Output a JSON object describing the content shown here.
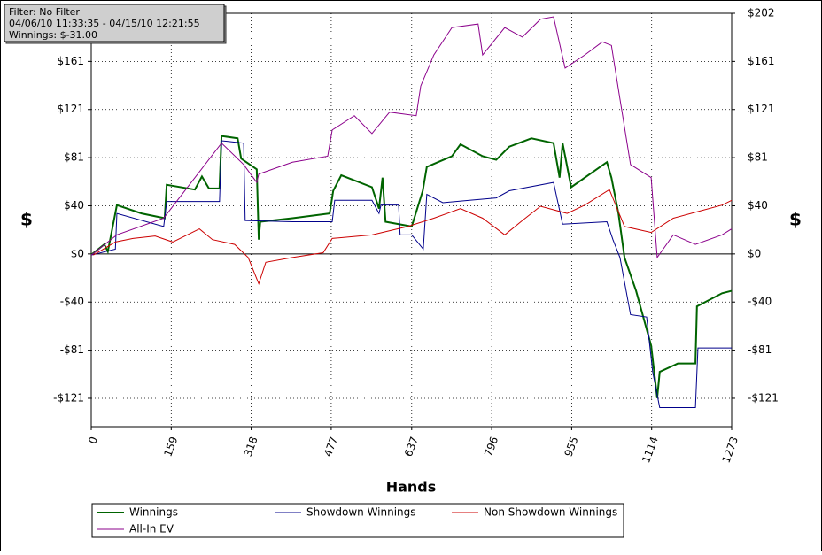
{
  "chart_data": {
    "type": "line",
    "info_box": [
      "Filter: No Filter",
      "04/06/10 11:33:35 - 04/15/10 12:21:55",
      "Winnings: $-31.00"
    ],
    "xlabel": "Hands",
    "ylabel": "$",
    "xlim": [
      0,
      1273
    ],
    "xticks": [
      0,
      159,
      318,
      477,
      637,
      796,
      955,
      1114,
      1273
    ],
    "ylim": [
      -145,
      202
    ],
    "yticks": [
      {
        "value": -121.2,
        "label": "-$121"
      },
      {
        "value": -80.8,
        "label": "-$81"
      },
      {
        "value": -40.4,
        "label": "-$40"
      },
      {
        "value": 0,
        "label": "$0"
      },
      {
        "value": 40.4,
        "label": "$40"
      },
      {
        "value": 80.8,
        "label": "$81"
      },
      {
        "value": 121.2,
        "label": "$121"
      },
      {
        "value": 161.6,
        "label": "$161"
      },
      {
        "value": 202,
        "label": "$202"
      }
    ],
    "grid": true,
    "series": [
      {
        "name": "Winnings",
        "color": "#006400",
        "x": [
          0,
          26,
          33,
          51,
          100,
          146,
          150,
          206,
          220,
          234,
          255,
          259,
          291,
          298,
          329,
          333,
          336,
          400,
          474,
          481,
          497,
          558,
          572,
          579,
          585,
          637,
          659,
          667,
          717,
          734,
          778,
          805,
          831,
          875,
          919,
          931,
          937,
          954,
          1025,
          1034,
          1048,
          1060,
          1083,
          1113,
          1125,
          1130,
          1166,
          1201,
          1204,
          1254,
          1273
        ],
        "values": [
          -0.7,
          8,
          2,
          41,
          34,
          30,
          58,
          54,
          65,
          55,
          55,
          99,
          97,
          80,
          71,
          12,
          27,
          30,
          34,
          53,
          66,
          56,
          38,
          64,
          27,
          23,
          53,
          73,
          82,
          92,
          82,
          79,
          90,
          97,
          93,
          64,
          93,
          56,
          77,
          64,
          34,
          -3,
          -31,
          -77,
          -121,
          -99,
          -92,
          -92,
          -44,
          -33,
          -31
        ]
      },
      {
        "name": "Showdown Winnings",
        "color": "#00008b",
        "x": [
          0,
          48,
          51,
          144,
          150,
          255,
          259,
          303,
          306,
          400,
          479,
          484,
          558,
          572,
          576,
          611,
          614,
          637,
          660,
          667,
          699,
          752,
          805,
          831,
          919,
          937,
          1025,
          1037,
          1051,
          1072,
          1104,
          1116,
          1130,
          1201,
          1206,
          1273
        ],
        "values": [
          -1,
          4,
          34,
          23,
          44,
          44,
          95,
          93,
          28,
          27,
          27,
          45,
          45,
          34,
          41,
          41,
          16,
          16,
          4,
          50,
          43,
          45,
          47,
          53,
          60,
          25,
          27,
          12,
          -3,
          -51,
          -53,
          -99,
          -129,
          -129,
          -79,
          -79
        ]
      },
      {
        "name": "Non Showdown Winnings",
        "color": "#cc0000",
        "x": [
          4,
          48,
          83,
          127,
          162,
          215,
          241,
          285,
          312,
          333,
          347,
          400,
          461,
          479,
          558,
          629,
          681,
          734,
          778,
          822,
          857,
          893,
          946,
          981,
          1030,
          1060,
          1113,
          1157,
          1210,
          1254,
          1273
        ],
        "values": [
          -1,
          10,
          13,
          15,
          10,
          21,
          12,
          8,
          -3,
          -25,
          -7,
          -3,
          1,
          13,
          16,
          23,
          30,
          38,
          30,
          16,
          28,
          40,
          34,
          41,
          54,
          23,
          18,
          30,
          36,
          41,
          45
        ]
      },
      {
        "name": "All-In EV",
        "color": "#8b008b",
        "x": [
          0,
          51,
          144,
          259,
          303,
          329,
          333,
          400,
          470,
          479,
          523,
          558,
          593,
          646,
          655,
          681,
          717,
          769,
          778,
          822,
          857,
          893,
          919,
          942,
          981,
          1016,
          1034,
          1051,
          1072,
          1113,
          1125,
          1157,
          1201,
          1254,
          1273
        ],
        "values": [
          -1,
          16,
          30,
          93,
          75,
          60,
          67,
          77,
          82,
          104,
          116,
          101,
          119,
          116,
          141,
          167,
          190,
          193,
          167,
          190,
          182,
          197,
          199,
          156,
          167,
          178,
          175,
          130,
          75,
          64,
          -3,
          16,
          8,
          16,
          21
        ]
      }
    ]
  }
}
